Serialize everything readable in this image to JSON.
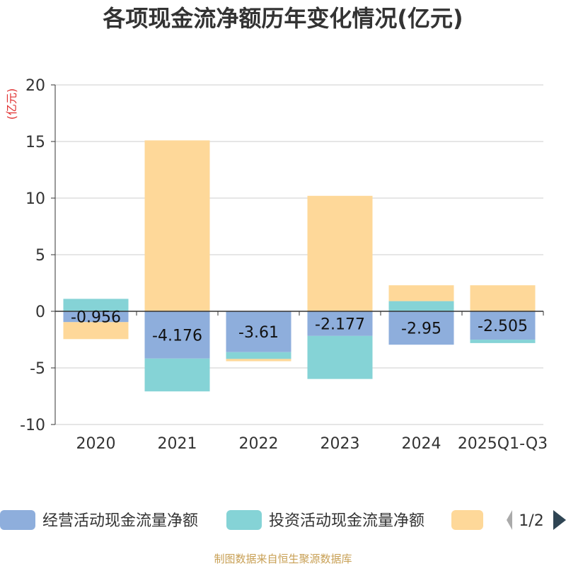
{
  "chart_data": {
    "type": "bar",
    "stacked": true,
    "title": "各项现金流净额历年变化情况(亿元)",
    "ylabel": "(亿元)",
    "ylim": [
      -10,
      20
    ],
    "yticks": [
      20,
      15,
      10,
      5,
      0,
      -5,
      -10
    ],
    "grid": true,
    "categories": [
      "2020",
      "2021",
      "2022",
      "2023",
      "2024",
      "2025Q1-Q3"
    ],
    "series": [
      {
        "name": "经营活动现金流量净额",
        "color": "#8eaedc",
        "values": [
          -0.956,
          -4.176,
          -3.61,
          -2.177,
          -2.95,
          -2.505
        ],
        "labels": [
          "-0.956",
          "-4.176",
          "-3.61",
          "-2.177",
          "-2.95",
          "-2.505"
        ]
      },
      {
        "name": "投资活动现金流量净额",
        "color": "#85d3d6",
        "values": [
          1.1,
          -2.9,
          -0.6,
          -3.8,
          0.9,
          -0.3
        ]
      },
      {
        "name": "",
        "color": "#fed899",
        "values": [
          -1.5,
          15.1,
          -0.2,
          10.2,
          1.4,
          2.3
        ]
      }
    ],
    "legend": {
      "position": "bottom",
      "page": "1/2"
    }
  },
  "source": "制图数据来自恒生聚源数据库",
  "colors": {
    "title": "#333333",
    "unit": "#e03030",
    "source": "#c8a055",
    "grid": "#cccccc",
    "axis": "#333333",
    "arrow_inactive": "#aaaaaa",
    "arrow_active": "#2f4554"
  }
}
